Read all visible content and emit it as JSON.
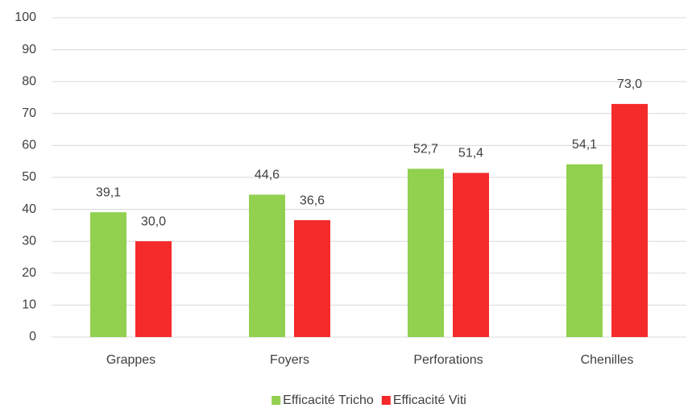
{
  "chart_data": {
    "type": "bar",
    "categories": [
      "Grappes",
      "Foyers",
      "Perforations",
      "Chenilles"
    ],
    "series": [
      {
        "name": "Efficacité Tricho",
        "color": "#92d050",
        "values": [
          39.1,
          44.6,
          52.7,
          54.1
        ],
        "value_labels": [
          "39,1",
          "44,6",
          "52,7",
          "54,1"
        ]
      },
      {
        "name": "Efficacité Viti",
        "color": "#f52a2a",
        "values": [
          30.0,
          36.6,
          51.4,
          73.0
        ],
        "value_labels": [
          "30,0",
          "36,6",
          "51,4",
          "73,0"
        ]
      }
    ],
    "ylim": [
      0,
      100
    ],
    "yticks": [
      0,
      10,
      20,
      30,
      40,
      50,
      60,
      70,
      80,
      90,
      100
    ],
    "grid": true,
    "legend": "bottom"
  }
}
